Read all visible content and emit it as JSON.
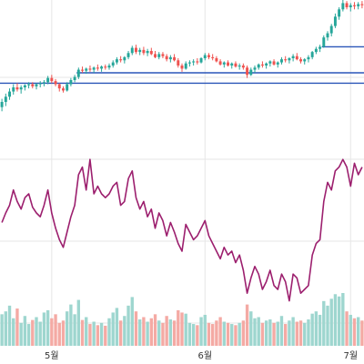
{
  "chart_data": {
    "type": "candlestick",
    "title": "",
    "xlabel": "",
    "ylabel": "",
    "x_tick_labels": [
      {
        "index": 13,
        "label": "5월"
      },
      {
        "index": 53,
        "label": "6월"
      },
      {
        "index": 91,
        "label": "7월"
      }
    ],
    "grid": true,
    "colors": {
      "up": "#26a69a",
      "down": "#ef5350",
      "volume_up": "#9ed6cf",
      "volume_down": "#f4aaa4",
      "indicator": "#9c1f6e",
      "horizontal_lines": "#2a55b8",
      "grid": "#e6e6e6"
    },
    "price_scale": [
      60,
      235
    ],
    "horizontal_levels": [
      {
        "price": 190,
        "from_index": 84
      },
      {
        "price": 165,
        "from_index": 20
      },
      {
        "price": 155,
        "from_index": 0
      }
    ],
    "candles": [
      [
        132,
        140,
        128,
        137
      ],
      [
        137,
        145,
        133,
        142
      ],
      [
        142,
        150,
        139,
        147
      ],
      [
        147,
        154,
        144,
        151
      ],
      [
        151,
        155,
        147,
        149
      ],
      [
        149,
        153,
        145,
        151
      ],
      [
        151,
        154,
        148,
        153
      ],
      [
        153,
        156,
        150,
        154
      ],
      [
        154,
        156,
        150,
        152
      ],
      [
        152,
        155,
        149,
        154
      ],
      [
        154,
        157,
        151,
        155
      ],
      [
        155,
        158,
        152,
        156
      ],
      [
        156,
        162,
        154,
        160
      ],
      [
        160,
        163,
        155,
        157
      ],
      [
        157,
        159,
        152,
        154
      ],
      [
        154,
        155,
        147,
        150
      ],
      [
        150,
        152,
        146,
        148
      ],
      [
        148,
        156,
        147,
        154
      ],
      [
        154,
        160,
        152,
        158
      ],
      [
        158,
        163,
        156,
        161
      ],
      [
        161,
        170,
        159,
        168
      ],
      [
        168,
        171,
        165,
        167
      ],
      [
        167,
        170,
        164,
        169
      ],
      [
        169,
        172,
        166,
        168
      ],
      [
        168,
        171,
        165,
        170
      ],
      [
        170,
        173,
        167,
        169
      ],
      [
        169,
        172,
        166,
        171
      ],
      [
        171,
        173,
        168,
        170
      ],
      [
        170,
        174,
        168,
        172
      ],
      [
        172,
        177,
        170,
        175
      ],
      [
        175,
        180,
        173,
        178
      ],
      [
        178,
        181,
        175,
        177
      ],
      [
        177,
        181,
        174,
        180
      ],
      [
        180,
        186,
        178,
        184
      ],
      [
        184,
        191,
        182,
        189
      ],
      [
        189,
        192,
        183,
        185
      ],
      [
        185,
        189,
        182,
        187
      ],
      [
        187,
        190,
        182,
        184
      ],
      [
        184,
        188,
        181,
        186
      ],
      [
        186,
        189,
        182,
        183
      ],
      [
        183,
        186,
        179,
        180
      ],
      [
        180,
        185,
        178,
        183
      ],
      [
        183,
        185,
        179,
        181
      ],
      [
        181,
        183,
        176,
        178
      ],
      [
        178,
        182,
        175,
        180
      ],
      [
        180,
        183,
        176,
        177
      ],
      [
        177,
        179,
        170,
        172
      ],
      [
        172,
        174,
        166,
        169
      ],
      [
        169,
        176,
        168,
        174
      ],
      [
        174,
        177,
        171,
        175
      ],
      [
        175,
        178,
        172,
        176
      ],
      [
        176,
        179,
        173,
        175
      ],
      [
        175,
        180,
        174,
        179
      ],
      [
        179,
        184,
        177,
        182
      ],
      [
        182,
        184,
        178,
        180
      ],
      [
        180,
        183,
        177,
        179
      ],
      [
        179,
        181,
        175,
        176
      ],
      [
        176,
        178,
        172,
        173
      ],
      [
        173,
        176,
        170,
        175
      ],
      [
        175,
        177,
        171,
        172
      ],
      [
        172,
        175,
        169,
        174
      ],
      [
        174,
        176,
        170,
        171
      ],
      [
        171,
        174,
        168,
        172
      ],
      [
        172,
        174,
        168,
        170
      ],
      [
        170,
        172,
        160,
        163
      ],
      [
        163,
        170,
        162,
        168
      ],
      [
        168,
        172,
        165,
        170
      ],
      [
        170,
        174,
        168,
        173
      ],
      [
        173,
        176,
        170,
        172
      ],
      [
        172,
        175,
        169,
        174
      ],
      [
        174,
        177,
        171,
        176
      ],
      [
        176,
        178,
        172,
        173
      ],
      [
        173,
        176,
        170,
        175
      ],
      [
        175,
        180,
        173,
        178
      ],
      [
        178,
        181,
        175,
        177
      ],
      [
        177,
        180,
        174,
        179
      ],
      [
        179,
        183,
        176,
        181
      ],
      [
        181,
        184,
        177,
        178
      ],
      [
        178,
        180,
        174,
        176
      ],
      [
        176,
        179,
        173,
        178
      ],
      [
        178,
        182,
        175,
        180
      ],
      [
        180,
        186,
        178,
        185
      ],
      [
        185,
        190,
        183,
        188
      ],
      [
        188,
        192,
        185,
        190
      ],
      [
        190,
        201,
        189,
        199
      ],
      [
        199,
        205,
        196,
        203
      ],
      [
        203,
        212,
        200,
        210
      ],
      [
        210,
        222,
        208,
        219
      ],
      [
        219,
        228,
        216,
        226
      ],
      [
        226,
        235,
        224,
        232
      ],
      [
        232,
        234,
        226,
        228
      ],
      [
        228,
        232,
        224,
        230
      ],
      [
        230,
        233,
        226,
        229
      ],
      [
        229,
        233,
        226,
        231
      ],
      [
        231,
        234,
        227,
        230
      ]
    ],
    "volume": [
      [
        55,
        "up"
      ],
      [
        60,
        "up"
      ],
      [
        70,
        "up"
      ],
      [
        48,
        "up"
      ],
      [
        65,
        "down"
      ],
      [
        40,
        "up"
      ],
      [
        52,
        "up"
      ],
      [
        38,
        "up"
      ],
      [
        45,
        "down"
      ],
      [
        50,
        "up"
      ],
      [
        42,
        "up"
      ],
      [
        58,
        "up"
      ],
      [
        62,
        "up"
      ],
      [
        48,
        "down"
      ],
      [
        55,
        "down"
      ],
      [
        40,
        "down"
      ],
      [
        44,
        "down"
      ],
      [
        60,
        "up"
      ],
      [
        72,
        "up"
      ],
      [
        55,
        "up"
      ],
      [
        80,
        "up"
      ],
      [
        45,
        "down"
      ],
      [
        50,
        "up"
      ],
      [
        38,
        "down"
      ],
      [
        42,
        "up"
      ],
      [
        36,
        "down"
      ],
      [
        40,
        "up"
      ],
      [
        35,
        "down"
      ],
      [
        48,
        "up"
      ],
      [
        58,
        "up"
      ],
      [
        66,
        "up"
      ],
      [
        44,
        "down"
      ],
      [
        52,
        "up"
      ],
      [
        70,
        "up"
      ],
      [
        85,
        "up"
      ],
      [
        60,
        "down"
      ],
      [
        46,
        "up"
      ],
      [
        50,
        "down"
      ],
      [
        42,
        "up"
      ],
      [
        48,
        "down"
      ],
      [
        55,
        "down"
      ],
      [
        44,
        "up"
      ],
      [
        40,
        "down"
      ],
      [
        52,
        "down"
      ],
      [
        46,
        "up"
      ],
      [
        44,
        "down"
      ],
      [
        62,
        "down"
      ],
      [
        58,
        "down"
      ],
      [
        56,
        "up"
      ],
      [
        40,
        "up"
      ],
      [
        38,
        "up"
      ],
      [
        36,
        "down"
      ],
      [
        50,
        "up"
      ],
      [
        54,
        "up"
      ],
      [
        40,
        "down"
      ],
      [
        38,
        "down"
      ],
      [
        44,
        "down"
      ],
      [
        50,
        "down"
      ],
      [
        42,
        "up"
      ],
      [
        40,
        "down"
      ],
      [
        38,
        "up"
      ],
      [
        36,
        "down"
      ],
      [
        40,
        "up"
      ],
      [
        44,
        "down"
      ],
      [
        72,
        "down"
      ],
      [
        60,
        "up"
      ],
      [
        48,
        "up"
      ],
      [
        50,
        "up"
      ],
      [
        40,
        "down"
      ],
      [
        44,
        "up"
      ],
      [
        46,
        "up"
      ],
      [
        40,
        "down"
      ],
      [
        42,
        "up"
      ],
      [
        52,
        "up"
      ],
      [
        38,
        "down"
      ],
      [
        44,
        "up"
      ],
      [
        50,
        "up"
      ],
      [
        42,
        "down"
      ],
      [
        44,
        "down"
      ],
      [
        40,
        "up"
      ],
      [
        46,
        "up"
      ],
      [
        56,
        "up"
      ],
      [
        60,
        "up"
      ],
      [
        54,
        "up"
      ],
      [
        78,
        "up"
      ],
      [
        70,
        "up"
      ],
      [
        82,
        "up"
      ],
      [
        90,
        "up"
      ],
      [
        86,
        "up"
      ],
      [
        92,
        "up"
      ],
      [
        60,
        "down"
      ],
      [
        54,
        "up"
      ],
      [
        48,
        "down"
      ],
      [
        50,
        "up"
      ],
      [
        44,
        "down"
      ]
    ],
    "indicator": {
      "scale": [
        0,
        100
      ],
      "values": [
        55,
        60,
        64,
        72,
        66,
        62,
        68,
        70,
        63,
        60,
        58,
        64,
        72,
        60,
        52,
        46,
        42,
        50,
        58,
        64,
        80,
        84,
        72,
        88,
        70,
        74,
        70,
        68,
        70,
        74,
        76,
        64,
        66,
        78,
        82,
        68,
        62,
        66,
        58,
        62,
        52,
        60,
        56,
        48,
        55,
        50,
        44,
        40,
        54,
        50,
        46,
        48,
        52,
        56,
        48,
        44,
        40,
        36,
        42,
        38,
        40,
        34,
        38,
        30,
        18,
        26,
        32,
        28,
        20,
        24,
        30,
        22,
        20,
        28,
        24,
        14,
        28,
        26,
        18,
        20,
        22,
        38,
        44,
        46,
        66,
        76,
        72,
        82,
        84,
        88,
        84,
        74,
        86,
        80,
        84
      ]
    }
  }
}
